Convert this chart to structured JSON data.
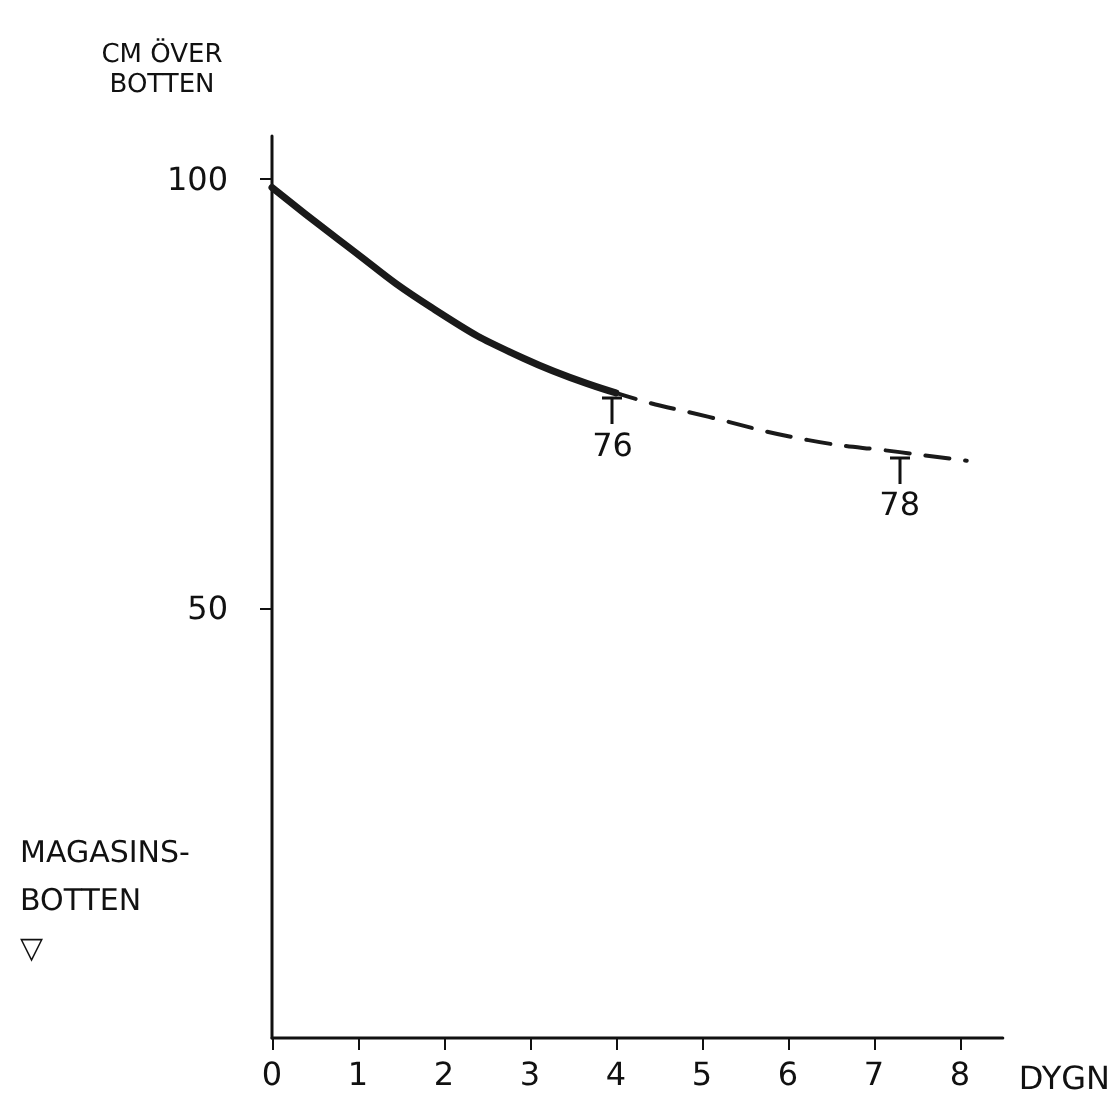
{
  "chart_data": {
    "type": "line",
    "ylabel": "CM ÖVER\nBOTTEN",
    "xlabel": "DYGN",
    "annotations": [
      {
        "text": "76",
        "x": 3.96,
        "y": 75.1
      },
      {
        "text": "78",
        "x": 7.3,
        "y": 68.2
      },
      "MAGASINS-\nBOTTEN\n▽"
    ],
    "series": [
      {
        "color": "#1a1a1a",
        "line_style": "solid",
        "x": [
          0,
          0.78,
          1.86,
          2.93,
          4.0
        ],
        "values": [
          99,
          92.9,
          85.0,
          79.1,
          75.1
        ]
      },
      {
        "color": "#1a1a1a",
        "line_style": "dashed",
        "x": [
          0,
          0.78,
          1.86,
          2.93,
          4.0,
          5.08,
          6.24,
          7.3,
          8.08
        ],
        "values": [
          99,
          92.9,
          85.0,
          79.1,
          75.1,
          72.3,
          69.6,
          68.2,
          67.2
        ]
      }
    ],
    "xlim": [
      0,
      8.5
    ],
    "xticks": [
      0,
      1,
      2,
      3,
      4,
      5,
      6,
      7,
      8
    ],
    "ylim": [
      0,
      105
    ],
    "yticks": [
      50,
      100
    ],
    "grid": false,
    "marker": "none"
  }
}
